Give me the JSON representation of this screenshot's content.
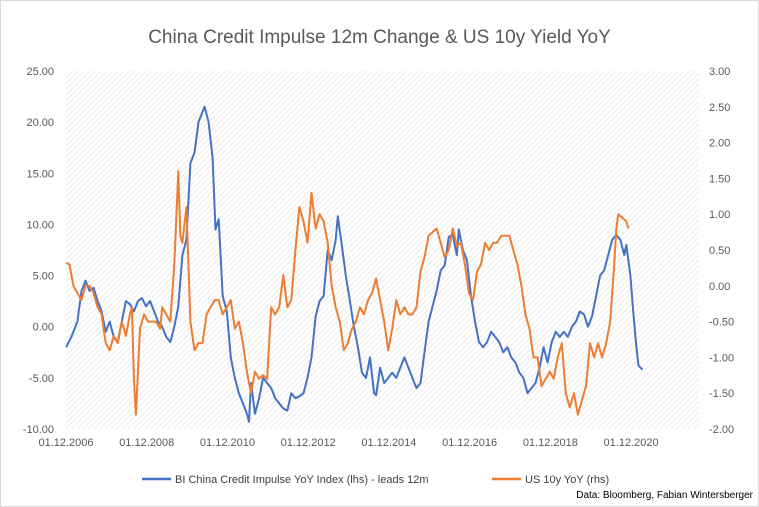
{
  "chart_data": {
    "type": "line",
    "title": "China Credit Impulse 12m Change & US 10y Yield YoY",
    "source": "Data: Bloomberg, Fabian Wintersberger",
    "x_tick_labels": [
      "01.12.2006",
      "01.12.2008",
      "01.12.2010",
      "01.12.2012",
      "01.12.2014",
      "01.12.2016",
      "01.12.2018",
      "01.12.2020"
    ],
    "x_tick_years": [
      2006.917,
      2008.917,
      2010.917,
      2012.917,
      2014.917,
      2016.917,
      2018.917,
      2020.917
    ],
    "xlim": [
      2006.917,
      2022.6
    ],
    "y_left": {
      "ylim": [
        -10,
        25
      ],
      "tick_values": [
        -10,
        -5,
        0,
        5,
        10,
        15,
        20,
        25
      ],
      "tick_labels": [
        "-10.00",
        "-5.00",
        "0.00",
        "5.00",
        "10.00",
        "15.00",
        "20.00",
        "25.00"
      ]
    },
    "y_right": {
      "ylim": [
        -2,
        3
      ],
      "tick_values": [
        -2,
        -1.5,
        -1,
        -0.5,
        0,
        0.5,
        1,
        1.5,
        2,
        2.5,
        3
      ],
      "tick_labels": [
        "-2.00",
        "-1.50",
        "-1.00",
        "-0.50",
        "0.00",
        "0.50",
        "1.00",
        "1.50",
        "2.00",
        "2.50",
        "3.00"
      ]
    },
    "grid": false,
    "background": "diagonal hatch",
    "legend_position": "bottom",
    "series": [
      {
        "name": "BI China Credit Impulse YoY Index (lhs) - leads 12m",
        "axis": "left",
        "color": "#4472c4",
        "points": [
          [
            2006.92,
            -2.0
          ],
          [
            2007.05,
            -1.0
          ],
          [
            2007.2,
            0.5
          ],
          [
            2007.3,
            3.5
          ],
          [
            2007.4,
            4.5
          ],
          [
            2007.5,
            3.5
          ],
          [
            2007.6,
            3.8
          ],
          [
            2007.7,
            2.5
          ],
          [
            2007.8,
            1.5
          ],
          [
            2007.9,
            -0.5
          ],
          [
            2008.0,
            0.5
          ],
          [
            2008.1,
            -1.0
          ],
          [
            2008.2,
            -1.5
          ],
          [
            2008.3,
            0.5
          ],
          [
            2008.4,
            2.5
          ],
          [
            2008.5,
            2.2
          ],
          [
            2008.6,
            1.5
          ],
          [
            2008.7,
            2.5
          ],
          [
            2008.8,
            2.8
          ],
          [
            2008.9,
            2.0
          ],
          [
            2009.0,
            2.5
          ],
          [
            2009.1,
            1.5
          ],
          [
            2009.2,
            0.5
          ],
          [
            2009.3,
            0.0
          ],
          [
            2009.4,
            -1.0
          ],
          [
            2009.5,
            -1.5
          ],
          [
            2009.6,
            0.0
          ],
          [
            2009.7,
            2.0
          ],
          [
            2009.8,
            7.0
          ],
          [
            2009.9,
            8.5
          ],
          [
            2010.0,
            16.0
          ],
          [
            2010.1,
            17.0
          ],
          [
            2010.2,
            20.0
          ],
          [
            2010.3,
            21.0
          ],
          [
            2010.35,
            21.5
          ],
          [
            2010.45,
            20.0
          ],
          [
            2010.55,
            16.5
          ],
          [
            2010.62,
            9.5
          ],
          [
            2010.7,
            10.5
          ],
          [
            2010.8,
            3.0
          ],
          [
            2010.9,
            1.5
          ],
          [
            2011.0,
            -3.0
          ],
          [
            2011.1,
            -5.0
          ],
          [
            2011.2,
            -6.5
          ],
          [
            2011.3,
            -7.5
          ],
          [
            2011.4,
            -8.5
          ],
          [
            2011.45,
            -9.3
          ],
          [
            2011.5,
            -5.5
          ],
          [
            2011.6,
            -8.5
          ],
          [
            2011.7,
            -7.0
          ],
          [
            2011.8,
            -5.0
          ],
          [
            2011.9,
            -5.5
          ],
          [
            2012.0,
            -6.0
          ],
          [
            2012.1,
            -7.0
          ],
          [
            2012.2,
            -7.5
          ],
          [
            2012.3,
            -8.0
          ],
          [
            2012.4,
            -8.2
          ],
          [
            2012.5,
            -6.5
          ],
          [
            2012.6,
            -7.0
          ],
          [
            2012.7,
            -6.8
          ],
          [
            2012.8,
            -6.5
          ],
          [
            2012.9,
            -5.0
          ],
          [
            2013.0,
            -3.0
          ],
          [
            2013.1,
            1.0
          ],
          [
            2013.2,
            2.5
          ],
          [
            2013.3,
            3.0
          ],
          [
            2013.4,
            7.5
          ],
          [
            2013.5,
            6.5
          ],
          [
            2013.6,
            8.5
          ],
          [
            2013.65,
            10.8
          ],
          [
            2013.75,
            8.0
          ],
          [
            2013.85,
            5.0
          ],
          [
            2013.95,
            2.5
          ],
          [
            2014.05,
            0.0
          ],
          [
            2014.15,
            -2.0
          ],
          [
            2014.25,
            -4.5
          ],
          [
            2014.35,
            -5.0
          ],
          [
            2014.45,
            -3.0
          ],
          [
            2014.55,
            -6.5
          ],
          [
            2014.6,
            -6.7
          ],
          [
            2014.7,
            -4.0
          ],
          [
            2014.8,
            -5.5
          ],
          [
            2014.9,
            -5.0
          ],
          [
            2015.0,
            -4.5
          ],
          [
            2015.1,
            -5.0
          ],
          [
            2015.2,
            -4.0
          ],
          [
            2015.3,
            -3.0
          ],
          [
            2015.4,
            -4.0
          ],
          [
            2015.5,
            -5.0
          ],
          [
            2015.6,
            -6.0
          ],
          [
            2015.7,
            -5.5
          ],
          [
            2015.8,
            -2.5
          ],
          [
            2015.9,
            0.5
          ],
          [
            2016.0,
            2.0
          ],
          [
            2016.1,
            3.5
          ],
          [
            2016.2,
            5.5
          ],
          [
            2016.3,
            6.0
          ],
          [
            2016.4,
            8.8
          ],
          [
            2016.5,
            9.0
          ],
          [
            2016.6,
            7.0
          ],
          [
            2016.65,
            9.5
          ],
          [
            2016.75,
            7.5
          ],
          [
            2016.85,
            6.5
          ],
          [
            2016.95,
            3.0
          ],
          [
            2017.05,
            0.5
          ],
          [
            2017.15,
            -1.5
          ],
          [
            2017.25,
            -2.0
          ],
          [
            2017.35,
            -1.5
          ],
          [
            2017.45,
            -0.5
          ],
          [
            2017.55,
            -1.0
          ],
          [
            2017.65,
            -1.5
          ],
          [
            2017.75,
            -2.5
          ],
          [
            2017.85,
            -2.0
          ],
          [
            2017.95,
            -3.0
          ],
          [
            2018.05,
            -3.5
          ],
          [
            2018.15,
            -4.5
          ],
          [
            2018.25,
            -5.0
          ],
          [
            2018.35,
            -6.5
          ],
          [
            2018.45,
            -6.0
          ],
          [
            2018.55,
            -5.5
          ],
          [
            2018.65,
            -4.0
          ],
          [
            2018.75,
            -2.0
          ],
          [
            2018.85,
            -3.5
          ],
          [
            2018.95,
            -1.5
          ],
          [
            2019.05,
            -0.5
          ],
          [
            2019.15,
            -1.0
          ],
          [
            2019.25,
            -0.5
          ],
          [
            2019.35,
            -1.0
          ],
          [
            2019.45,
            0.0
          ],
          [
            2019.55,
            0.5
          ],
          [
            2019.65,
            1.5
          ],
          [
            2019.75,
            1.2
          ],
          [
            2019.85,
            0.0
          ],
          [
            2019.95,
            1.0
          ],
          [
            2020.05,
            3.0
          ],
          [
            2020.15,
            5.0
          ],
          [
            2020.25,
            5.5
          ],
          [
            2020.35,
            7.0
          ],
          [
            2020.45,
            8.5
          ],
          [
            2020.55,
            9.0
          ],
          [
            2020.65,
            8.5
          ],
          [
            2020.75,
            7.0
          ],
          [
            2020.8,
            8.0
          ],
          [
            2020.9,
            5.0
          ],
          [
            2020.97,
            1.5
          ],
          [
            2021.05,
            -2.0
          ],
          [
            2021.1,
            -3.8
          ],
          [
            2021.2,
            -4.2
          ]
        ]
      },
      {
        "name": "US 10y YoY (rhs)",
        "axis": "right",
        "color": "#ed7d31",
        "points": [
          [
            2006.92,
            0.32
          ],
          [
            2007.0,
            0.3
          ],
          [
            2007.1,
            0.0
          ],
          [
            2007.2,
            -0.1
          ],
          [
            2007.3,
            -0.2
          ],
          [
            2007.4,
            0.0
          ],
          [
            2007.5,
            0.0
          ],
          [
            2007.6,
            -0.1
          ],
          [
            2007.7,
            -0.3
          ],
          [
            2007.8,
            -0.4
          ],
          [
            2007.9,
            -0.8
          ],
          [
            2008.0,
            -0.9
          ],
          [
            2008.1,
            -0.7
          ],
          [
            2008.2,
            -0.8
          ],
          [
            2008.3,
            -0.5
          ],
          [
            2008.4,
            -0.7
          ],
          [
            2008.5,
            -0.4
          ],
          [
            2008.55,
            -0.3
          ],
          [
            2008.6,
            -1.3
          ],
          [
            2008.65,
            -1.8
          ],
          [
            2008.75,
            -0.6
          ],
          [
            2008.85,
            -0.4
          ],
          [
            2008.95,
            -0.5
          ],
          [
            2009.05,
            -0.5
          ],
          [
            2009.15,
            -0.5
          ],
          [
            2009.25,
            -0.6
          ],
          [
            2009.3,
            -0.3
          ],
          [
            2009.4,
            -0.4
          ],
          [
            2009.5,
            -0.5
          ],
          [
            2009.6,
            0.3
          ],
          [
            2009.7,
            1.6
          ],
          [
            2009.75,
            0.7
          ],
          [
            2009.8,
            0.6
          ],
          [
            2009.9,
            1.1
          ],
          [
            2010.0,
            -0.5
          ],
          [
            2010.1,
            -0.9
          ],
          [
            2010.2,
            -0.8
          ],
          [
            2010.3,
            -0.8
          ],
          [
            2010.4,
            -0.4
          ],
          [
            2010.5,
            -0.3
          ],
          [
            2010.6,
            -0.2
          ],
          [
            2010.7,
            -0.2
          ],
          [
            2010.8,
            -0.4
          ],
          [
            2010.9,
            -0.3
          ],
          [
            2011.0,
            -0.2
          ],
          [
            2011.1,
            -0.6
          ],
          [
            2011.2,
            -0.5
          ],
          [
            2011.3,
            -0.8
          ],
          [
            2011.4,
            -1.2
          ],
          [
            2011.5,
            -1.5
          ],
          [
            2011.6,
            -1.2
          ],
          [
            2011.7,
            -1.3
          ],
          [
            2011.8,
            -1.25
          ],
          [
            2011.9,
            -1.3
          ],
          [
            2012.0,
            -0.3
          ],
          [
            2012.1,
            -0.4
          ],
          [
            2012.2,
            -0.3
          ],
          [
            2012.3,
            0.15
          ],
          [
            2012.4,
            -0.3
          ],
          [
            2012.5,
            -0.2
          ],
          [
            2012.6,
            0.5
          ],
          [
            2012.7,
            1.1
          ],
          [
            2012.8,
            0.9
          ],
          [
            2012.9,
            0.6
          ],
          [
            2013.0,
            1.3
          ],
          [
            2013.1,
            0.8
          ],
          [
            2013.2,
            1.0
          ],
          [
            2013.3,
            0.9
          ],
          [
            2013.4,
            0.6
          ],
          [
            2013.5,
            0.0
          ],
          [
            2013.6,
            -0.3
          ],
          [
            2013.7,
            -0.5
          ],
          [
            2013.8,
            -0.9
          ],
          [
            2013.9,
            -0.8
          ],
          [
            2014.0,
            -0.6
          ],
          [
            2014.1,
            -0.5
          ],
          [
            2014.2,
            -0.3
          ],
          [
            2014.3,
            -0.4
          ],
          [
            2014.4,
            -0.2
          ],
          [
            2014.5,
            -0.1
          ],
          [
            2014.6,
            0.1
          ],
          [
            2014.7,
            -0.2
          ],
          [
            2014.8,
            -0.5
          ],
          [
            2014.9,
            -0.9
          ],
          [
            2015.0,
            -0.6
          ],
          [
            2015.1,
            -0.2
          ],
          [
            2015.2,
            -0.4
          ],
          [
            2015.3,
            -0.3
          ],
          [
            2015.4,
            -0.4
          ],
          [
            2015.5,
            -0.4
          ],
          [
            2015.6,
            -0.3
          ],
          [
            2015.7,
            0.2
          ],
          [
            2015.8,
            0.4
          ],
          [
            2015.9,
            0.7
          ],
          [
            2016.0,
            0.75
          ],
          [
            2016.1,
            0.8
          ],
          [
            2016.2,
            0.6
          ],
          [
            2016.3,
            0.4
          ],
          [
            2016.4,
            0.5
          ],
          [
            2016.5,
            0.8
          ],
          [
            2016.6,
            0.55
          ],
          [
            2016.7,
            0.6
          ],
          [
            2016.8,
            0.3
          ],
          [
            2016.9,
            -0.1
          ],
          [
            2017.0,
            -0.2
          ],
          [
            2017.1,
            0.2
          ],
          [
            2017.2,
            0.3
          ],
          [
            2017.3,
            0.6
          ],
          [
            2017.4,
            0.5
          ],
          [
            2017.5,
            0.6
          ],
          [
            2017.6,
            0.6
          ],
          [
            2017.7,
            0.7
          ],
          [
            2017.8,
            0.7
          ],
          [
            2017.9,
            0.7
          ],
          [
            2018.0,
            0.5
          ],
          [
            2018.1,
            0.3
          ],
          [
            2018.2,
            0.0
          ],
          [
            2018.3,
            -0.4
          ],
          [
            2018.4,
            -0.6
          ],
          [
            2018.5,
            -1.0
          ],
          [
            2018.6,
            -1.0
          ],
          [
            2018.7,
            -1.4
          ],
          [
            2018.8,
            -1.3
          ],
          [
            2018.9,
            -1.2
          ],
          [
            2019.0,
            -1.3
          ],
          [
            2019.1,
            -1.0
          ],
          [
            2019.2,
            -0.8
          ],
          [
            2019.3,
            -1.5
          ],
          [
            2019.4,
            -1.7
          ],
          [
            2019.5,
            -1.5
          ],
          [
            2019.6,
            -1.8
          ],
          [
            2019.7,
            -1.6
          ],
          [
            2019.8,
            -1.4
          ],
          [
            2019.9,
            -0.8
          ],
          [
            2020.0,
            -1.0
          ],
          [
            2020.1,
            -0.8
          ],
          [
            2020.2,
            -1.0
          ],
          [
            2020.3,
            -0.8
          ],
          [
            2020.4,
            -0.5
          ],
          [
            2020.5,
            0.3
          ],
          [
            2020.55,
            0.8
          ],
          [
            2020.6,
            1.0
          ],
          [
            2020.7,
            0.95
          ],
          [
            2020.8,
            0.9
          ],
          [
            2020.85,
            0.8
          ]
        ]
      }
    ]
  }
}
